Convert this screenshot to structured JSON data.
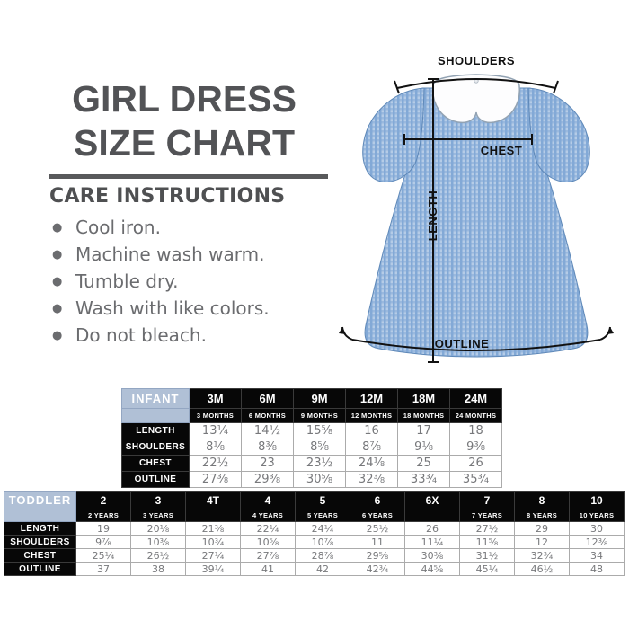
{
  "title": {
    "line1": "GIRL DRESS",
    "line2": "SIZE CHART"
  },
  "care": {
    "heading": "CARE INSTRUCTIONS",
    "items": [
      "Cool iron.",
      "Machine wash warm.",
      "Tumble dry.",
      "Wash with like colors.",
      "Do not bleach."
    ]
  },
  "diagram": {
    "labels": {
      "shoulders": "SHOULDERS",
      "chest": "CHEST",
      "length": "LENGTH",
      "outline": "OUTLINE"
    },
    "colors": {
      "dress_blue": "#82A9D6",
      "dress_light": "#B5CCE7",
      "collar_white": "#FDFDFE",
      "annotation": "#111111"
    }
  },
  "infant_table": {
    "title": "INFANT",
    "columns": [
      {
        "size": "3M",
        "sub": "3 MONTHS"
      },
      {
        "size": "6M",
        "sub": "6 MONTHS"
      },
      {
        "size": "9M",
        "sub": "9 MONTHS"
      },
      {
        "size": "12M",
        "sub": "12 MONTHS"
      },
      {
        "size": "18M",
        "sub": "18 MONTHS"
      },
      {
        "size": "24M",
        "sub": "24 MONTHS"
      }
    ],
    "rows": [
      {
        "label": "LENGTH",
        "values": [
          "13¼",
          "14½",
          "15⅝",
          "16",
          "17",
          "18"
        ]
      },
      {
        "label": "SHOULDERS",
        "values": [
          "8⅛",
          "8⅜",
          "8⅝",
          "8⅞",
          "9⅛",
          "9⅜"
        ]
      },
      {
        "label": "CHEST",
        "values": [
          "22½",
          "23",
          "23½",
          "24⅛",
          "25",
          "26"
        ]
      },
      {
        "label": "OUTLINE",
        "values": [
          "27⅜",
          "29⅜",
          "30⅝",
          "32⅜",
          "33¾",
          "35¾"
        ]
      }
    ]
  },
  "toddler_table": {
    "title": "TODDLER",
    "columns": [
      {
        "size": "2",
        "sub": "2 YEARS"
      },
      {
        "size": "3",
        "sub": "3 YEARS"
      },
      {
        "size": "4T",
        "sub": ""
      },
      {
        "size": "4",
        "sub": "4 YEARS"
      },
      {
        "size": "5",
        "sub": "5 YEARS"
      },
      {
        "size": "6",
        "sub": "6 YEARS"
      },
      {
        "size": "6X",
        "sub": ""
      },
      {
        "size": "7",
        "sub": "7 YEARS"
      },
      {
        "size": "8",
        "sub": "8 YEARS"
      },
      {
        "size": "10",
        "sub": "10 YEARS"
      }
    ],
    "rows": [
      {
        "label": "LENGTH",
        "values": [
          "19",
          "20⅛",
          "21⅜",
          "22¼",
          "24¼",
          "25½",
          "26",
          "27½",
          "29",
          "30"
        ]
      },
      {
        "label": "SHOULDERS",
        "values": [
          "9⅞",
          "10⅜",
          "10¾",
          "10⅝",
          "10⅞",
          "11",
          "11¼",
          "11⅝",
          "12",
          "12⅜"
        ]
      },
      {
        "label": "CHEST",
        "values": [
          "25¼",
          "26½",
          "27¼",
          "27⅞",
          "28⅞",
          "29⅝",
          "30⅜",
          "31½",
          "32¾",
          "34"
        ]
      },
      {
        "label": "OUTLINE",
        "values": [
          "37",
          "38",
          "39¼",
          "41",
          "42",
          "42¾",
          "44⅝",
          "45¼",
          "46½",
          "48"
        ]
      }
    ]
  }
}
